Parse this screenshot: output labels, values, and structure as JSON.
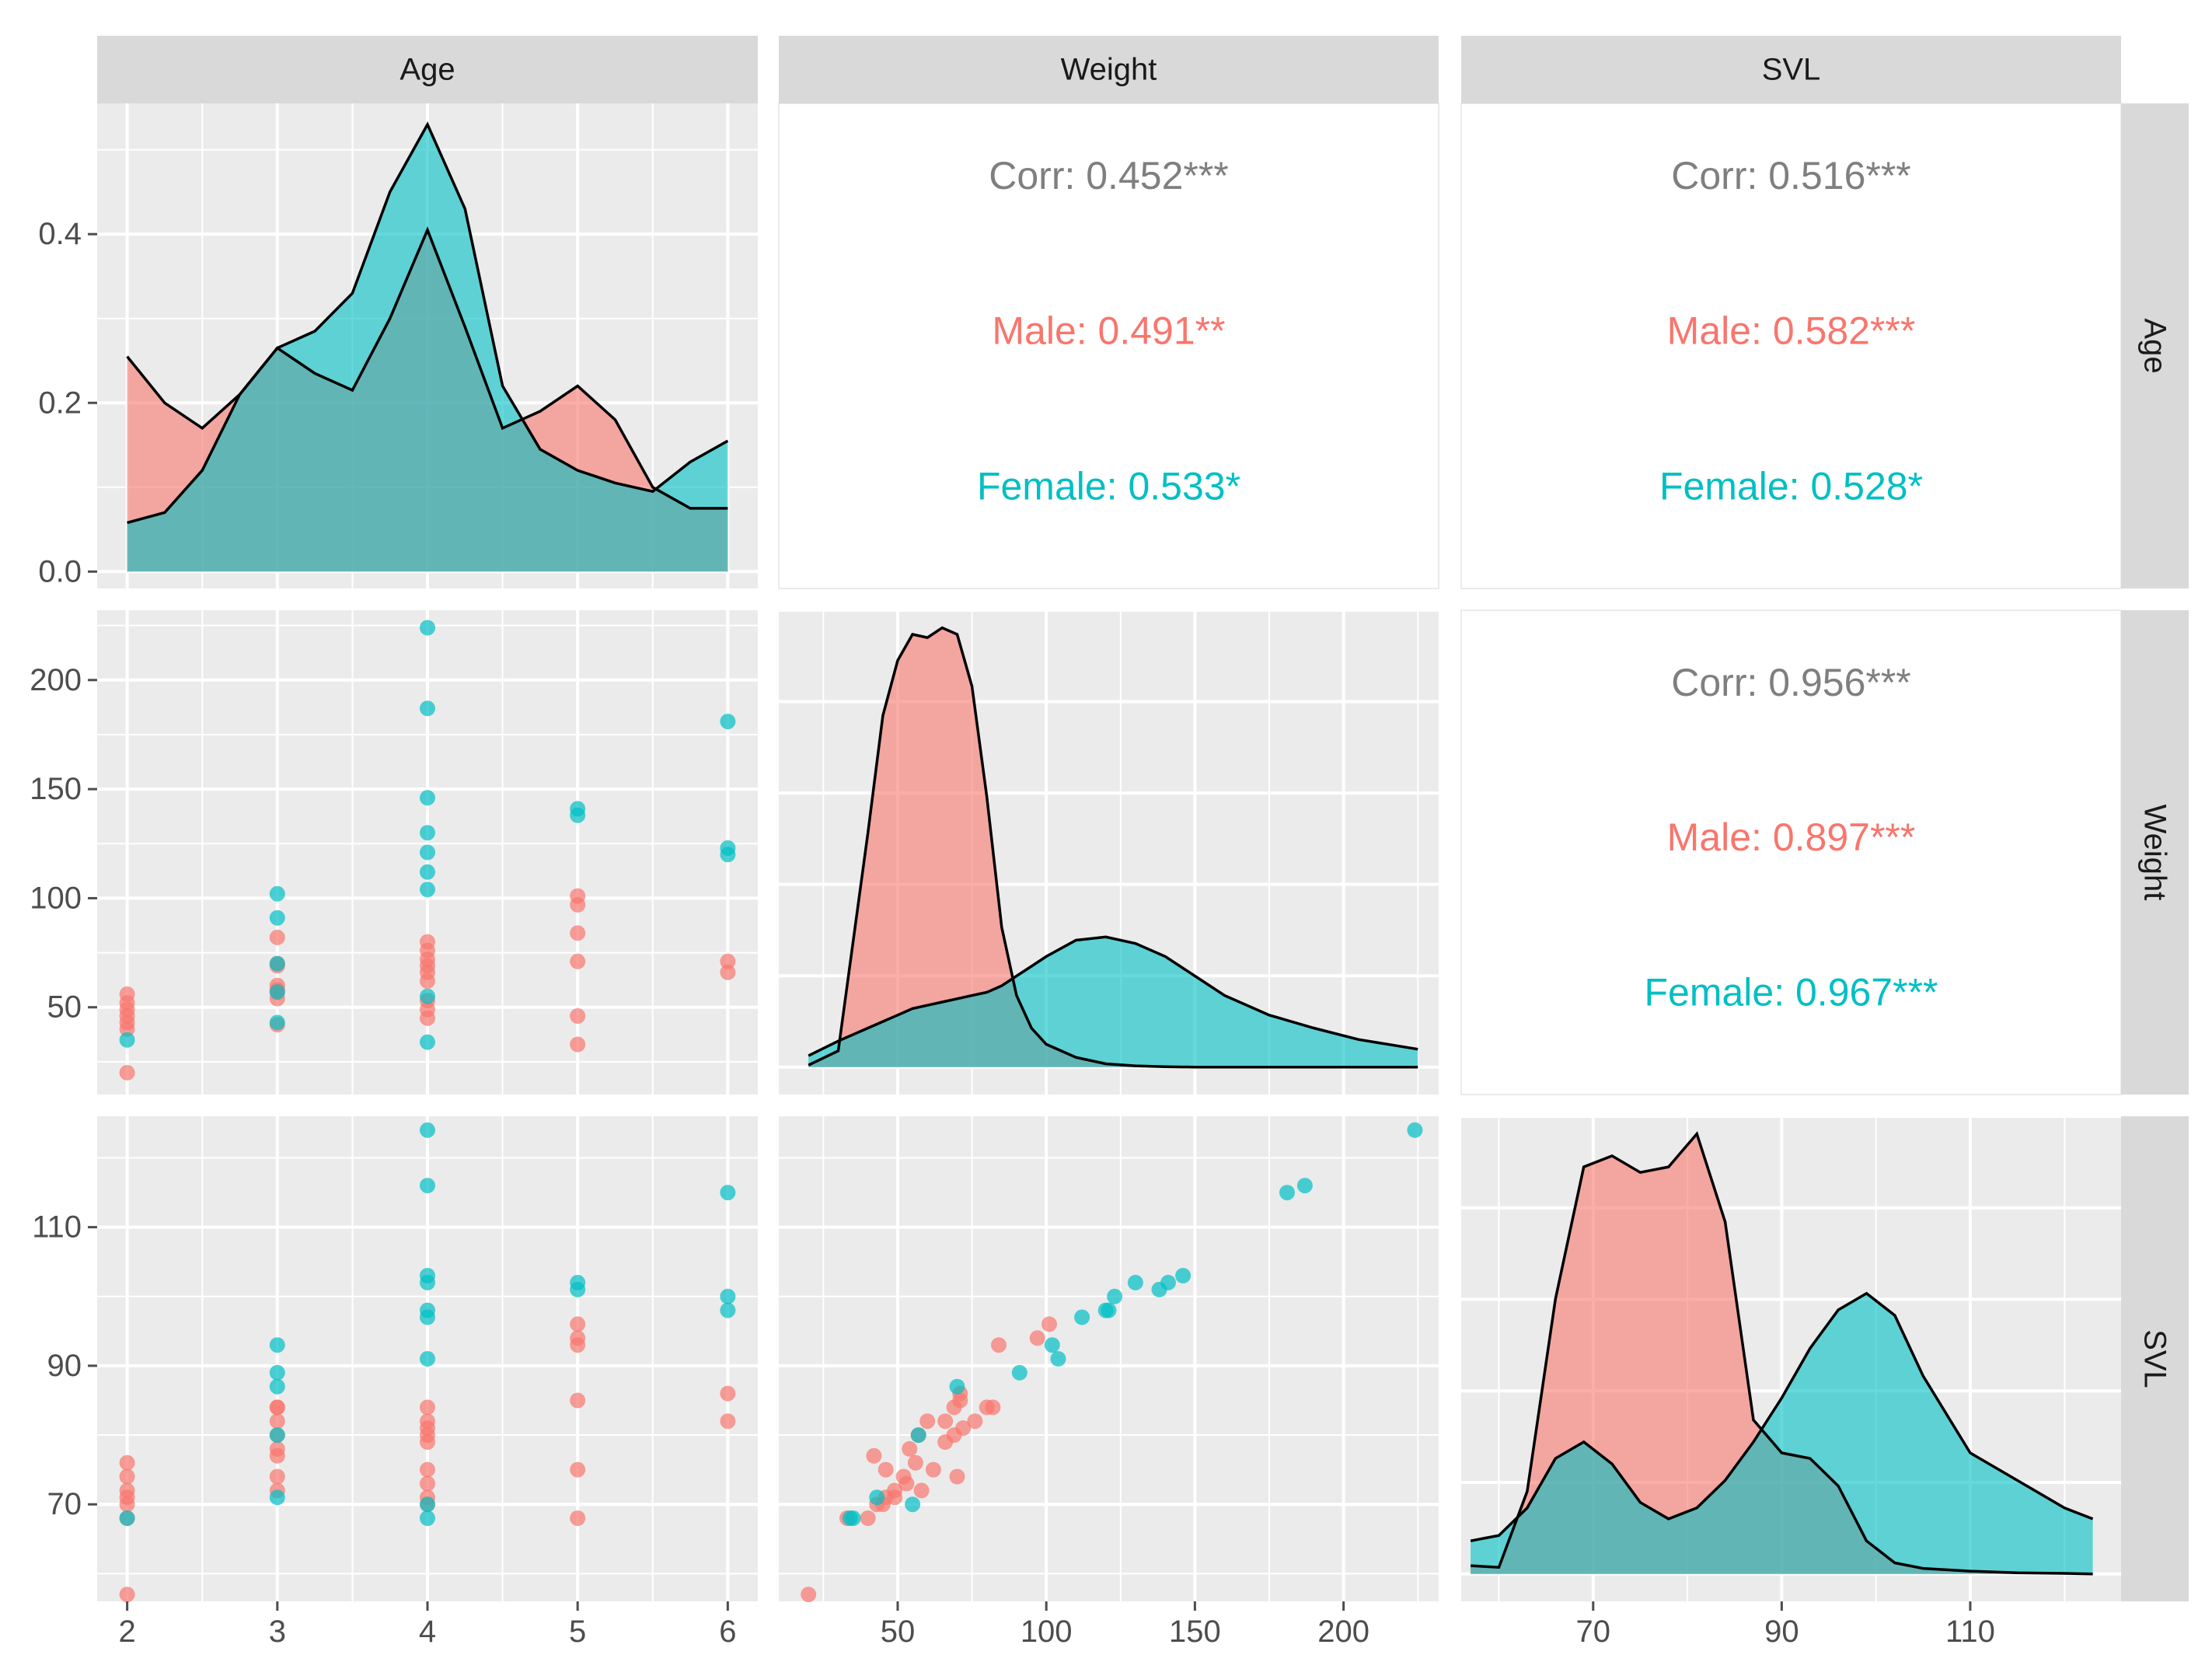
{
  "colors": {
    "male": "#F8766D",
    "female": "#00BFC4",
    "total": "#7F7F7F",
    "panel": "#EBEBEB",
    "strip": "#D9D9D9",
    "grid": "#FFFFFF",
    "tick": "#4D4D4D"
  },
  "variables": [
    "Age",
    "Weight",
    "SVL"
  ],
  "axes": {
    "Age": {
      "range": [
        1.8,
        6.2
      ],
      "ticks": [
        2,
        3,
        4,
        5,
        6
      ],
      "minor": [
        2.5,
        3.5,
        4.5,
        5.5
      ]
    },
    "Weight": {
      "range": [
        10,
        232
      ],
      "ticks": [
        50,
        100,
        150,
        200
      ],
      "minor": [
        25,
        75,
        125,
        175,
        225
      ]
    },
    "SVL": {
      "range": [
        56,
        126
      ],
      "ticks": [
        70,
        90,
        110
      ],
      "minor": [
        60,
        80,
        100,
        120
      ]
    }
  },
  "chart_data": {
    "type": "scatter",
    "title": "",
    "groups": [
      "Male",
      "Female"
    ],
    "strip_labels": {
      "top": [
        "Age",
        "Weight",
        "SVL"
      ],
      "right": [
        "Age",
        "Weight",
        "SVL"
      ]
    },
    "density_axis": {
      "range": [
        0,
        0.55
      ],
      "ticks": [
        "0.0",
        "0.2",
        "0.4"
      ]
    },
    "densities": {
      "Age": {
        "x": [
          2,
          2.25,
          2.5,
          2.75,
          3,
          3.25,
          3.5,
          3.75,
          4,
          4.25,
          4.5,
          4.75,
          5,
          5.25,
          5.5,
          5.75,
          6
        ],
        "male": [
          0.255,
          0.2,
          0.17,
          0.21,
          0.265,
          0.235,
          0.215,
          0.3,
          0.405,
          0.29,
          0.17,
          0.19,
          0.22,
          0.18,
          0.1,
          0.075,
          0.075
        ],
        "female": [
          0.058,
          0.07,
          0.12,
          0.21,
          0.265,
          0.285,
          0.33,
          0.45,
          0.53,
          0.43,
          0.22,
          0.145,
          0.12,
          0.105,
          0.095,
          0.13,
          0.155
        ]
      },
      "Weight": {
        "x": [
          20,
          30,
          40,
          45,
          50,
          55,
          60,
          65,
          70,
          75,
          80,
          85,
          90,
          95,
          100,
          110,
          120,
          130,
          140,
          150,
          160,
          175,
          190,
          205,
          225
        ],
        "male": [
          0.0006,
          0.005,
          0.072,
          0.108,
          0.125,
          0.133,
          0.132,
          0.135,
          0.133,
          0.117,
          0.083,
          0.043,
          0.022,
          0.012,
          0.007,
          0.003,
          0.001,
          0.0004,
          0.0001,
          0,
          0,
          0,
          0,
          0,
          0
        ],
        "female": [
          0.0035,
          0.008,
          0.012,
          0.014,
          0.016,
          0.018,
          0.019,
          0.02,
          0.021,
          0.022,
          0.023,
          0.025,
          0.028,
          0.031,
          0.034,
          0.039,
          0.04,
          0.038,
          0.034,
          0.028,
          0.022,
          0.016,
          0.012,
          0.0085,
          0.0055
        ]
      },
      "SVL": {
        "x": [
          57,
          60,
          63,
          66,
          69,
          72,
          75,
          78,
          81,
          84,
          87,
          90,
          93,
          96,
          99,
          102,
          105,
          110,
          115,
          120,
          123
        ],
        "male": [
          0.0015,
          0.0012,
          0.015,
          0.05,
          0.074,
          0.076,
          0.073,
          0.074,
          0.08,
          0.064,
          0.028,
          0.022,
          0.021,
          0.016,
          0.006,
          0.002,
          0.001,
          0.0005,
          0.0002,
          0.0001,
          0
        ],
        "female": [
          0.006,
          0.007,
          0.012,
          0.021,
          0.024,
          0.02,
          0.013,
          0.01,
          0.012,
          0.017,
          0.024,
          0.032,
          0.041,
          0.048,
          0.051,
          0.047,
          0.036,
          0.022,
          0.017,
          0.012,
          0.01
        ]
      }
    },
    "points": {
      "male": [
        [
          2,
          56,
          76
        ],
        [
          2,
          52,
          74
        ],
        [
          2,
          49,
          72
        ],
        [
          2,
          46,
          71
        ],
        [
          2,
          43,
          70
        ],
        [
          2,
          40,
          68
        ],
        [
          2,
          20,
          57
        ],
        [
          3,
          82,
          84
        ],
        [
          3,
          69,
          84
        ],
        [
          3,
          60,
          82
        ],
        [
          3,
          57,
          80
        ],
        [
          3,
          54,
          78
        ],
        [
          3,
          42,
          77
        ],
        [
          3,
          70,
          74
        ],
        [
          3,
          58,
          72
        ],
        [
          4,
          80,
          84
        ],
        [
          4,
          76,
          82
        ],
        [
          4,
          72,
          81
        ],
        [
          4,
          69,
          80
        ],
        [
          4,
          66,
          79
        ],
        [
          4,
          62,
          75
        ],
        [
          4,
          53,
          73
        ],
        [
          4,
          49,
          71
        ],
        [
          4,
          45,
          70
        ],
        [
          5,
          101,
          96
        ],
        [
          5,
          97,
          94
        ],
        [
          5,
          84,
          93
        ],
        [
          5,
          71,
          85
        ],
        [
          5,
          46,
          75
        ],
        [
          5,
          33,
          68
        ],
        [
          6,
          71,
          86
        ],
        [
          6,
          66,
          82
        ]
      ],
      "female": [
        [
          2,
          35,
          68
        ],
        [
          3,
          102,
          93
        ],
        [
          3,
          91,
          89
        ],
        [
          3,
          70,
          87
        ],
        [
          3,
          57,
          80
        ],
        [
          3,
          43,
          71
        ],
        [
          4,
          224,
          124
        ],
        [
          4,
          187,
          116
        ],
        [
          4,
          146,
          103
        ],
        [
          4,
          130,
          102
        ],
        [
          4,
          121,
          98
        ],
        [
          4,
          112,
          97
        ],
        [
          4,
          104,
          91
        ],
        [
          4,
          55,
          70
        ],
        [
          4,
          34,
          68
        ],
        [
          5,
          141,
          102
        ],
        [
          5,
          138,
          101
        ],
        [
          6,
          181,
          115
        ],
        [
          6,
          123,
          100
        ],
        [
          6,
          120,
          98
        ]
      ]
    },
    "correlations": {
      "Weight|Age": {
        "corr": "Corr: 0.452***",
        "male": "Male: 0.491**",
        "female": "Female: 0.533*"
      },
      "SVL|Age": {
        "corr": "Corr: 0.516***",
        "male": "Male: 0.582***",
        "female": "Female: 0.528*"
      },
      "SVL|Weight": {
        "corr": "Corr: 0.956***",
        "male": "Male: 0.897***",
        "female": "Female: 0.967***"
      }
    }
  }
}
